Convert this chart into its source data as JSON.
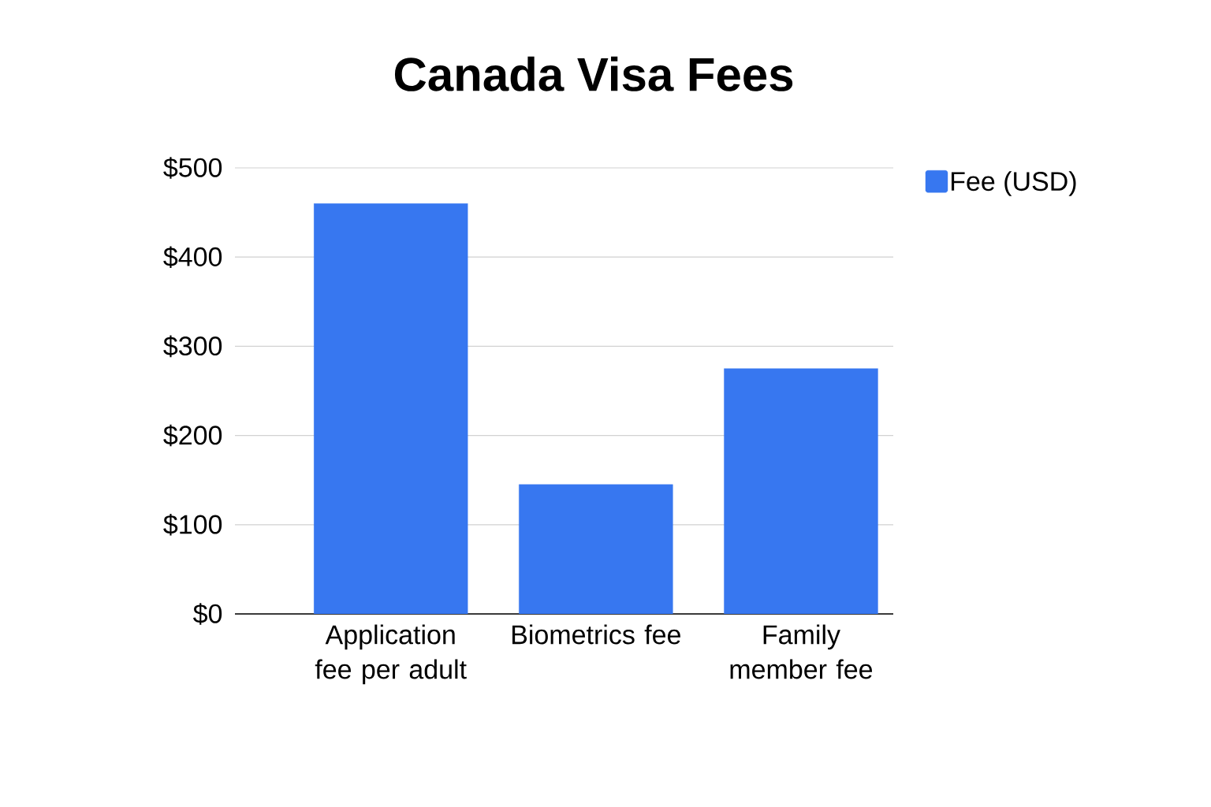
{
  "chart_data": {
    "type": "bar",
    "title": "Canada Visa Fees",
    "categories": [
      "Application fee per adult",
      "Biometrics fee",
      "Family member fee"
    ],
    "series": [
      {
        "name": "Fee (USD)",
        "color": "#3777f0",
        "values": [
          460,
          145,
          275
        ]
      }
    ],
    "ylim": [
      0,
      500
    ],
    "yticks": [
      {
        "value": 0,
        "label": "$0"
      },
      {
        "value": 100,
        "label": "$100"
      },
      {
        "value": 200,
        "label": "$200"
      },
      {
        "value": 300,
        "label": "$300"
      },
      {
        "value": 400,
        "label": "$400"
      },
      {
        "value": 500,
        "label": "$500"
      }
    ],
    "grid": "y",
    "legend": "top right"
  }
}
